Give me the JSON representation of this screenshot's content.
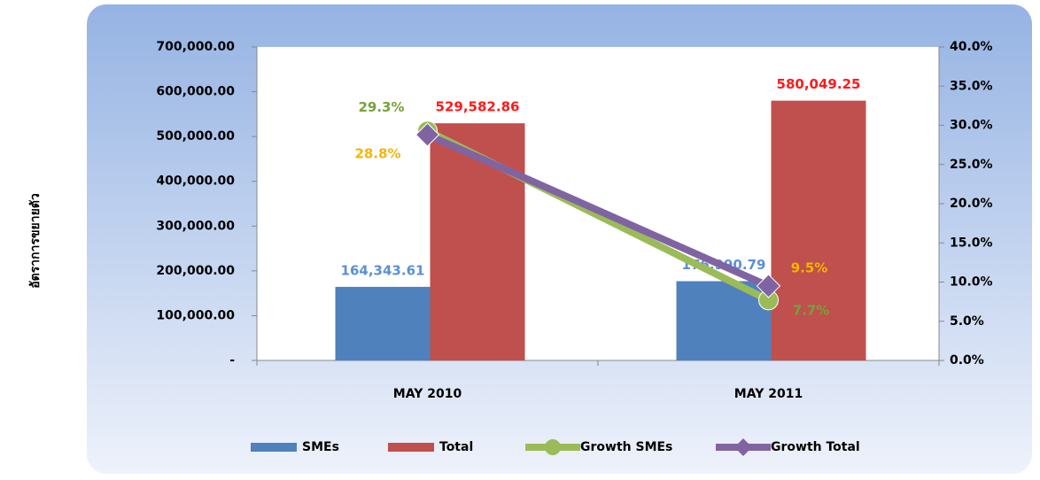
{
  "chart_data": {
    "type": "bar_line",
    "y_axis_label": "อัตราการขยายตัว",
    "categories": [
      "MAY 2010",
      "MAY 2011"
    ],
    "series": [
      {
        "name": "SMEs",
        "type": "bar",
        "color": "#4f81bd",
        "label_color": "#5b8fd6",
        "values": [
          164343.61,
          176990.79
        ],
        "value_labels": [
          "164,343.61",
          "176,990.79"
        ]
      },
      {
        "name": "Total",
        "type": "bar",
        "color": "#c0504d",
        "label_color": "#ff1a1a",
        "values": [
          529582.86,
          580049.25
        ],
        "value_labels": [
          "529,582.86",
          "580,049.25"
        ]
      },
      {
        "name": "Growth SMEs",
        "type": "line",
        "axis": "y2",
        "marker": "circle",
        "color": "#9bbb59",
        "label_color": "#77a13a",
        "values": [
          29.3,
          7.7
        ],
        "value_labels": [
          "29.3%",
          "7.7%"
        ]
      },
      {
        "name": "Growth Total",
        "type": "line",
        "axis": "y2",
        "marker": "diamond",
        "color": "#8064a2",
        "label_color": "#f5b400",
        "values": [
          28.8,
          9.5
        ],
        "value_labels": [
          "28.8%",
          "9.5%"
        ]
      }
    ],
    "ylim": [
      0,
      700000
    ],
    "yticks": [
      {
        "value": 0,
        "label": "-"
      },
      {
        "value": 100000,
        "label": "100,000.00"
      },
      {
        "value": 200000,
        "label": "200,000.00"
      },
      {
        "value": 300000,
        "label": "300,000.00"
      },
      {
        "value": 400000,
        "label": "400,000.00"
      },
      {
        "value": 500000,
        "label": "500,000.00"
      },
      {
        "value": 600000,
        "label": "600,000.00"
      },
      {
        "value": 700000,
        "label": "700,000.00"
      }
    ],
    "y2lim": [
      0,
      40
    ],
    "y2ticks": [
      {
        "value": 0,
        "label": "0.0%"
      },
      {
        "value": 5,
        "label": "5.0%"
      },
      {
        "value": 10,
        "label": "10.0%"
      },
      {
        "value": 15,
        "label": "15.0%"
      },
      {
        "value": 20,
        "label": "20.0%"
      },
      {
        "value": 25,
        "label": "25.0%"
      },
      {
        "value": 30,
        "label": "30.0%"
      },
      {
        "value": 35,
        "label": "35.0%"
      },
      {
        "value": 40,
        "label": "40.0%"
      }
    ],
    "legend": "bottom"
  }
}
